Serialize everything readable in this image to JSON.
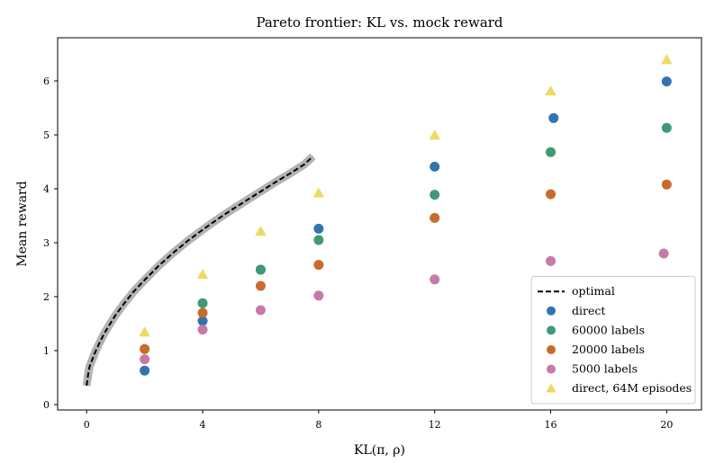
{
  "chart_data": {
    "type": "scatter",
    "title": "Pareto frontier: KL vs. mock reward",
    "xlabel": "KL(π, ρ)",
    "ylabel": "Mean reward",
    "xlim": [
      -1,
      21.2
    ],
    "ylim": [
      -0.1,
      6.8
    ],
    "xticks": [
      0,
      4,
      8,
      12,
      16,
      20
    ],
    "yticks": [
      0,
      1,
      2,
      3,
      4,
      5,
      6
    ],
    "grid": false,
    "legend_position": "bottom-right",
    "optimal": {
      "name": "optimal",
      "style": "dashed",
      "color": "#000000",
      "band_color": "#b3b3b3",
      "x": [
        0,
        0.05,
        0.1,
        0.2,
        0.3,
        0.45,
        0.6,
        0.8,
        1.0,
        1.3,
        1.6,
        2.0,
        2.5,
        3.0,
        3.5,
        4.0,
        4.5,
        5.0,
        5.5,
        6.0,
        6.5,
        7.0,
        7.5,
        7.8
      ],
      "y": [
        0.35,
        0.55,
        0.7,
        0.84,
        0.98,
        1.15,
        1.31,
        1.49,
        1.66,
        1.88,
        2.08,
        2.31,
        2.58,
        2.82,
        3.04,
        3.24,
        3.43,
        3.61,
        3.78,
        3.95,
        4.12,
        4.28,
        4.45,
        4.6
      ]
    },
    "series": [
      {
        "name": "direct",
        "color": "#3274b0",
        "marker": "circle",
        "points": [
          [
            2.0,
            0.63
          ],
          [
            4.0,
            1.55
          ],
          [
            6.0,
            2.5
          ],
          [
            8.0,
            3.26
          ],
          [
            12.0,
            4.41
          ],
          [
            16.1,
            5.31
          ],
          [
            20.0,
            5.99
          ]
        ]
      },
      {
        "name": "60000 labels",
        "color": "#3f9a73",
        "marker": "circle",
        "points": [
          [
            4.0,
            1.88
          ],
          [
            6.0,
            2.5
          ],
          [
            8.0,
            3.05
          ],
          [
            12.0,
            3.89
          ],
          [
            16.0,
            4.68
          ],
          [
            20.0,
            5.13
          ]
        ]
      },
      {
        "name": "20000 labels",
        "color": "#c96b2c",
        "marker": "circle",
        "points": [
          [
            2.0,
            1.03
          ],
          [
            4.0,
            1.7
          ],
          [
            6.0,
            2.2
          ],
          [
            8.0,
            2.59
          ],
          [
            12.0,
            3.46
          ],
          [
            16.0,
            3.9
          ],
          [
            20.0,
            4.08
          ]
        ]
      },
      {
        "name": "5000 labels",
        "color": "#c779a8",
        "marker": "circle",
        "points": [
          [
            2.0,
            0.84
          ],
          [
            4.0,
            1.39
          ],
          [
            6.0,
            1.75
          ],
          [
            8.0,
            2.02
          ],
          [
            12.0,
            2.32
          ],
          [
            16.0,
            2.66
          ],
          [
            19.9,
            2.8
          ]
        ]
      },
      {
        "name": "direct, 64M episodes",
        "color": "#ebdb62",
        "marker": "triangle",
        "points": [
          [
            2.0,
            1.34
          ],
          [
            4.0,
            2.41
          ],
          [
            6.0,
            3.21
          ],
          [
            8.0,
            3.92
          ],
          [
            12.0,
            4.99
          ],
          [
            16.0,
            5.81
          ],
          [
            20.0,
            6.39
          ]
        ]
      }
    ]
  }
}
